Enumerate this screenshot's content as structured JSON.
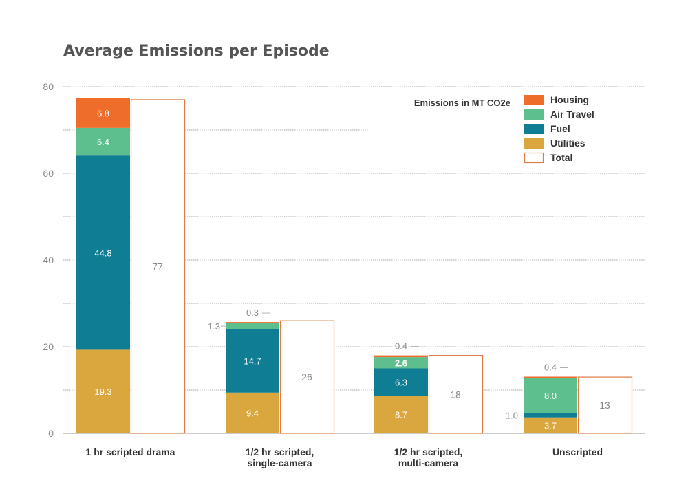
{
  "chart_data": {
    "type": "bar",
    "title": "Average Emissions per Episode",
    "xlabel": "",
    "ylabel": "",
    "ylim": [
      0,
      80
    ],
    "yticks": [
      0,
      20,
      40,
      60,
      80
    ],
    "categories": [
      [
        "1 hr scripted drama"
      ],
      [
        "1/2 hr scripted,",
        "single-camera"
      ],
      [
        "1/2 hr scripted,",
        "multi-camera"
      ],
      [
        "Unscripted"
      ]
    ],
    "series": [
      {
        "name": "Utilities",
        "color": "#d9a73e",
        "values": [
          19.3,
          9.4,
          8.7,
          3.7
        ],
        "labels": [
          "19.3",
          "9.4",
          "8.7",
          "3.7"
        ]
      },
      {
        "name": "Fuel",
        "color": "#0f7d94",
        "values": [
          44.8,
          14.7,
          6.3,
          1.0
        ],
        "labels": [
          "44.8",
          "14.7",
          "6.3",
          "1.0"
        ]
      },
      {
        "name": "Air Travel",
        "color": "#5dbf8e",
        "values": [
          6.4,
          1.3,
          2.6,
          8.0
        ],
        "labels": [
          "6.4",
          "1.3",
          "2.6",
          "8.0"
        ]
      },
      {
        "name": "Housing",
        "color": "#ef6d2a",
        "values": [
          6.8,
          0.3,
          0.4,
          0.4
        ],
        "labels": [
          "6.8",
          "0.3",
          "0.4",
          "0.4"
        ]
      }
    ],
    "totals": {
      "name": "Total",
      "values": [
        77,
        26,
        18,
        13
      ],
      "labels": [
        "77",
        "26",
        "18",
        "13"
      ],
      "stroke": "#e07b45"
    },
    "legend": {
      "title": "Emissions in MT CO2e",
      "position": "top-right",
      "items": [
        {
          "name": "Housing",
          "color": "#ef6d2a",
          "outlined": false
        },
        {
          "name": "Air Travel",
          "color": "#5dbf8e",
          "outlined": false
        },
        {
          "name": "Fuel",
          "color": "#0f7d94",
          "outlined": false
        },
        {
          "name": "Utilities",
          "color": "#d9a73e",
          "outlined": false
        },
        {
          "name": "Total",
          "color": "#e07b45",
          "outlined": true
        }
      ]
    },
    "grid": true
  }
}
